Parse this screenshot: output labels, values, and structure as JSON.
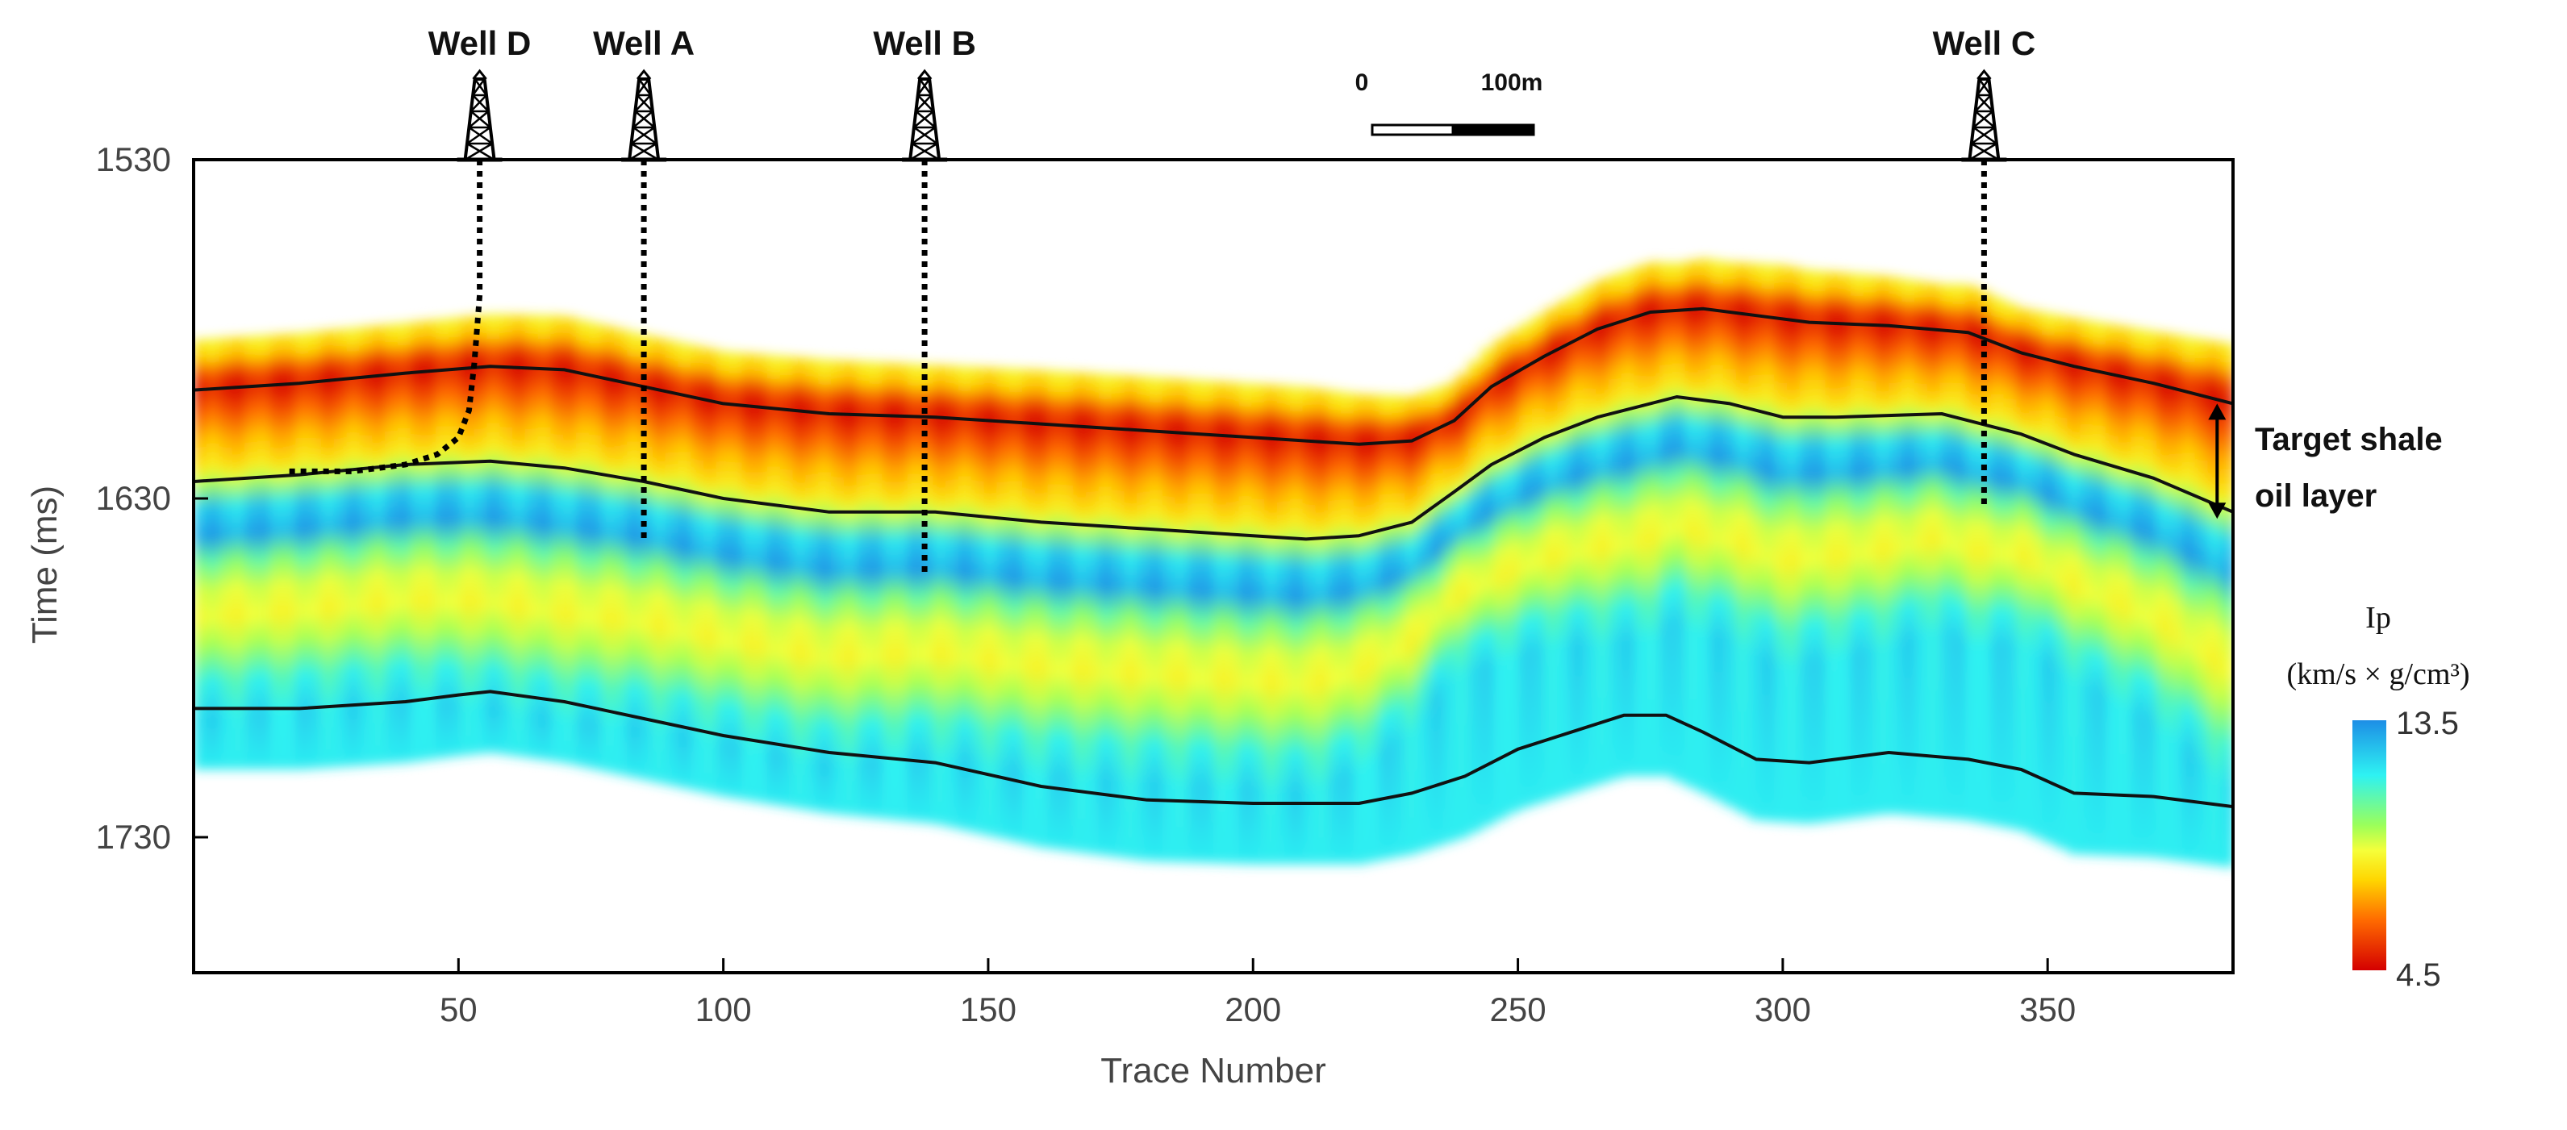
{
  "chart_data": {
    "type": "heatmap",
    "title": "",
    "xlabel": "Trace Number",
    "ylabel": "Time (ms)",
    "xlim": [
      0,
      385
    ],
    "ylim": [
      1530,
      1770
    ],
    "x_ticks": [
      50,
      100,
      150,
      200,
      250,
      300,
      350
    ],
    "y_ticks": [
      1530,
      1630,
      1730
    ],
    "x_tick_labels": [
      "50",
      "100",
      "150",
      "200",
      "250",
      "300",
      "350"
    ],
    "y_tick_labels": [
      "1530",
      "1630",
      "1730"
    ],
    "colorbar": {
      "title_line1": "Ip",
      "title_line2": "(km/s × g/cm³)",
      "min": 4.5,
      "max": 13.5,
      "min_label": "4.5",
      "max_label": "13.5",
      "colors": [
        "#d40000",
        "#ff6a00",
        "#ffd500",
        "#f5ff3a",
        "#9bff5a",
        "#2ef2f2",
        "#1d8ee6"
      ]
    },
    "horizons": [
      {
        "name": "top",
        "x": [
          0,
          20,
          40,
          56,
          70,
          85,
          100,
          120,
          140,
          160,
          180,
          200,
          220,
          230,
          238,
          245,
          255,
          265,
          275,
          285,
          295,
          305,
          320,
          335,
          345,
          355,
          370,
          385
        ],
        "y": [
          1598,
          1596,
          1593,
          1591,
          1592,
          1597,
          1602,
          1605,
          1606,
          1608,
          1610,
          1612,
          1614,
          1613,
          1607,
          1597,
          1588,
          1580,
          1575,
          1574,
          1576,
          1578,
          1579,
          1581,
          1587,
          1591,
          1596,
          1602
        ]
      },
      {
        "name": "middle",
        "x": [
          0,
          20,
          40,
          56,
          70,
          85,
          100,
          120,
          140,
          160,
          180,
          200,
          210,
          220,
          230,
          238,
          245,
          255,
          265,
          280,
          290,
          300,
          310,
          330,
          345,
          355,
          370,
          385
        ],
        "y": [
          1625,
          1623,
          1620,
          1619,
          1621,
          1625,
          1630,
          1634,
          1634,
          1637,
          1639,
          1641,
          1642,
          1641,
          1637,
          1628,
          1620,
          1612,
          1606,
          1600,
          1602,
          1606,
          1606,
          1605,
          1611,
          1617,
          1624,
          1634
        ]
      },
      {
        "name": "bottom",
        "x": [
          0,
          20,
          40,
          50,
          56,
          70,
          85,
          100,
          120,
          140,
          160,
          180,
          200,
          220,
          230,
          240,
          250,
          260,
          270,
          278,
          285,
          295,
          305,
          320,
          335,
          345,
          355,
          370,
          385
        ],
        "y": [
          1692,
          1692,
          1690,
          1688,
          1687,
          1690,
          1695,
          1700,
          1705,
          1708,
          1715,
          1719,
          1720,
          1720,
          1717,
          1712,
          1704,
          1699,
          1694,
          1694,
          1699,
          1707,
          1708,
          1705,
          1707,
          1710,
          1717,
          1718,
          1721
        ]
      }
    ],
    "wells": [
      {
        "name": "Well D",
        "x": 54,
        "path_x": [
          54,
          54,
          53,
          52,
          50,
          46,
          40,
          30,
          18
        ],
        "path_y": [
          1530,
          1570,
          1590,
          1604,
          1612,
          1617,
          1620,
          1622,
          1622
        ]
      },
      {
        "name": "Well A",
        "x": 85,
        "path_x": [
          85,
          85
        ],
        "path_y": [
          1530,
          1642
        ]
      },
      {
        "name": "Well B",
        "x": 138,
        "path_x": [
          138,
          138
        ],
        "path_y": [
          1530,
          1652
        ]
      },
      {
        "name": "Well C",
        "x": 338,
        "path_x": [
          338,
          338
        ],
        "path_y": [
          1530,
          1633
        ]
      }
    ],
    "annotation": {
      "line1": "Target shale",
      "line2": "oil layer",
      "arrow_x": 382,
      "arrow_y": [
        1602,
        1636
      ]
    },
    "scale_bar": {
      "left_label": "0",
      "right_label": "100m"
    }
  }
}
